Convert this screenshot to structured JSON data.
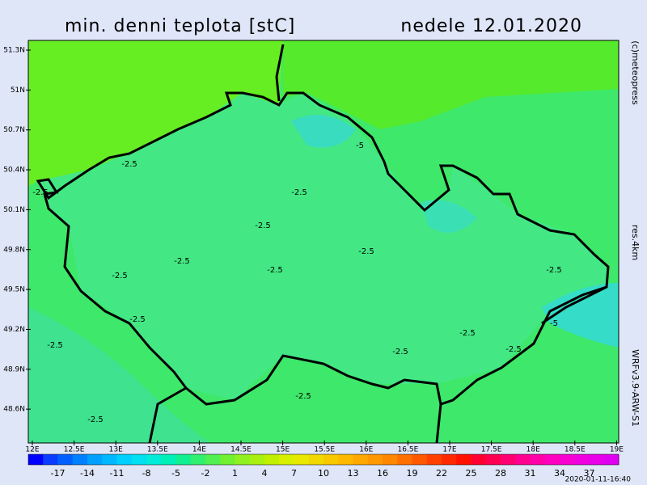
{
  "map": {
    "title": "min. denni teplota [stC]",
    "date": "nedele 12.01.2020",
    "copyright": "(c)meteopress",
    "resolution": "res.4km",
    "model": "WRFv3.9-ARW-S1",
    "timestamp": "2020-01-11-16:40",
    "lat_labels": [
      "51.3N",
      "51N",
      "50.7N",
      "50.4N",
      "50.1N",
      "49.8N",
      "49.5N",
      "49.2N",
      "48.9N",
      "48.6N"
    ],
    "lon_labels": [
      "12E",
      "12.5E",
      "13E",
      "13.5E",
      "14E",
      "14.5E",
      "15E",
      "15.5E",
      "16E",
      "16.5E",
      "17E",
      "17.5E",
      "18E",
      "18.5E",
      "19E"
    ],
    "colorbar_labels": [
      "-17",
      "-14",
      "-11",
      "-8",
      "-5",
      "-2",
      "1",
      "4",
      "7",
      "10",
      "13",
      "16",
      "19",
      "22",
      "25",
      "28",
      "31",
      "34",
      "37"
    ],
    "contour_labels": [
      "-2.5",
      "-2.5",
      "-2.5",
      "-2.5",
      "-2.5",
      "-2.5",
      "-2.5",
      "-2.5",
      "-2.5",
      "-2.5",
      "-2.5",
      "-2.5",
      "-2.5",
      "-2.5",
      "-2.5",
      "-2.5",
      "-5",
      "-5"
    ]
  }
}
